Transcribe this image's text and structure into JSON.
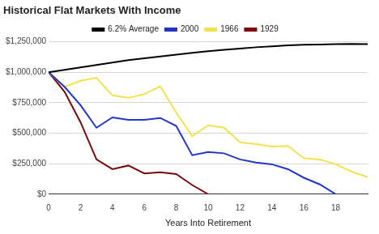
{
  "chart_data": {
    "type": "line",
    "title": "Historical Flat Markets With Income",
    "x_label": "Years Into Retirement",
    "x": [
      0,
      1,
      2,
      3,
      4,
      5,
      6,
      7,
      8,
      9,
      10,
      11,
      12,
      13,
      14,
      15,
      16,
      17,
      18,
      19,
      20
    ],
    "series": [
      {
        "name": "6.2% Average",
        "color": "#000000",
        "values": [
          1000000,
          1020000,
          1040000,
          1060000,
          1080000,
          1100000,
          1115000,
          1130000,
          1145000,
          1160000,
          1172000,
          1185000,
          1195000,
          1205000,
          1213000,
          1220000,
          1225000,
          1228000,
          1230000,
          1232000,
          1230000
        ]
      },
      {
        "name": "2000",
        "color": "#2236c2",
        "values": [
          1000000,
          880000,
          730000,
          545000,
          630000,
          610000,
          610000,
          625000,
          560000,
          320000,
          345000,
          335000,
          285000,
          260000,
          245000,
          205000,
          135000,
          80000,
          0,
          null,
          null
        ]
      },
      {
        "name": "1966",
        "color": "#f2e250",
        "values": [
          1000000,
          880000,
          930000,
          955000,
          810000,
          790000,
          820000,
          885000,
          670000,
          475000,
          565000,
          545000,
          425000,
          410000,
          390000,
          395000,
          295000,
          285000,
          245000,
          185000,
          140000
        ]
      },
      {
        "name": "1929",
        "color": "#7a0a0a",
        "values": [
          1000000,
          840000,
          590000,
          285000,
          205000,
          235000,
          170000,
          180000,
          165000,
          75000,
          0,
          null,
          null,
          null,
          null,
          null,
          null,
          null,
          null,
          null,
          null
        ]
      }
    ],
    "xlim": [
      0,
      20
    ],
    "xticks": [
      0,
      2,
      4,
      6,
      8,
      10,
      12,
      14,
      16,
      18
    ],
    "ylim": [
      0,
      1250000
    ],
    "yticks": [
      {
        "value": 0,
        "label": "$0"
      },
      {
        "value": 250000,
        "label": "$250,000"
      },
      {
        "value": 500000,
        "label": "$500,000"
      },
      {
        "value": 750000,
        "label": "$750,000"
      },
      {
        "value": 1000000,
        "label": "$1,000,000"
      },
      {
        "value": 1250000,
        "label": "$1,250,000"
      }
    ],
    "grid": true,
    "legend": "top"
  }
}
